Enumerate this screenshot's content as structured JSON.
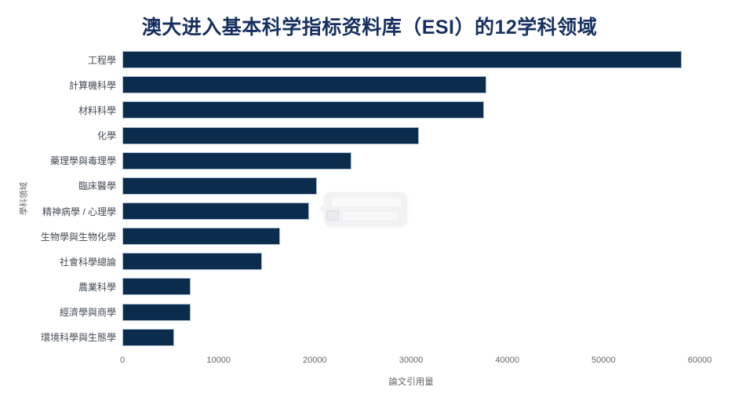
{
  "page": {
    "background": "#ffffff"
  },
  "chart_data": {
    "type": "bar",
    "orientation": "horizontal",
    "title": "澳大进入基本科学指标资料库（ESI）的12学科领域",
    "xlabel": "論文引用量",
    "ylabel": "學科領域",
    "xlim": [
      0,
      60000
    ],
    "xticks": [
      "0",
      "10000",
      "20000",
      "30000",
      "40000",
      "50000",
      "60000"
    ],
    "grid": false,
    "legend": false,
    "categories": [
      "工程學",
      "計算機科學",
      "材料科學",
      "化學",
      "藥理學與毒理學",
      "臨床醫學",
      "精神病學 / 心理學",
      "生物學與生物化學",
      "社會科學總論",
      "農業科學",
      "經濟學與商學",
      "環境科學與生態學"
    ],
    "values": [
      58100,
      37800,
      37600,
      30800,
      23800,
      20200,
      19400,
      16400,
      14500,
      7100,
      7100,
      5400
    ],
    "colors": {
      "bar_fill": "#0c2c4e",
      "bar_border": "#a8bccf",
      "title": "#17305f",
      "category_label": "#434b55",
      "tick_label": "#666666"
    }
  },
  "tooltip": {
    "visible": true,
    "text": ""
  }
}
